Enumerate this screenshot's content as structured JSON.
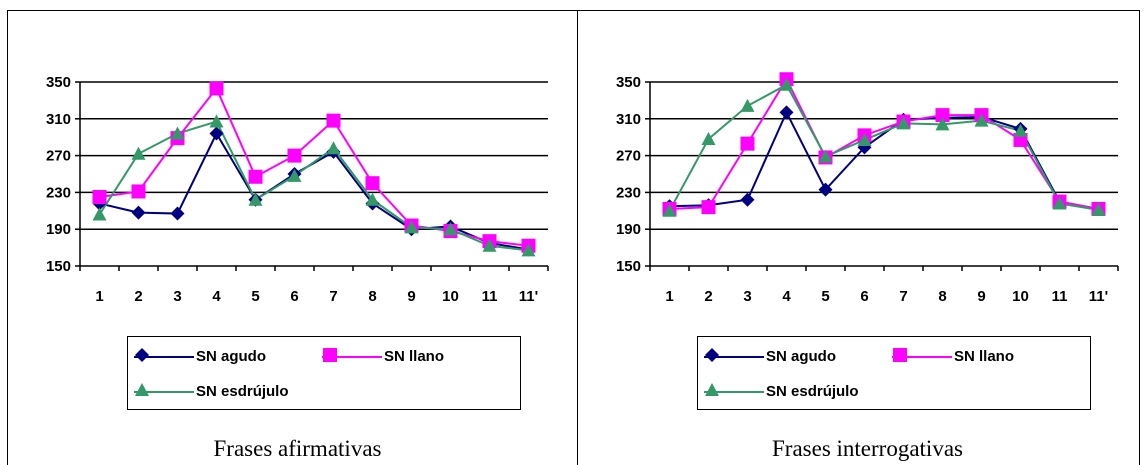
{
  "chart_data": [
    {
      "type": "line",
      "title": "Frases afirmativas",
      "categories": [
        "1",
        "2",
        "3",
        "4",
        "5",
        "6",
        "7",
        "8",
        "9",
        "10",
        "11",
        "11'"
      ],
      "ylim": [
        150,
        350
      ],
      "yticks": [
        150,
        190,
        230,
        270,
        310,
        350
      ],
      "grid": true,
      "legend_position": "bottom",
      "series": [
        {
          "name": "SN agudo",
          "values": [
            218,
            208,
            207,
            294,
            222,
            250,
            274,
            218,
            190,
            193,
            175,
            168
          ],
          "color": "#000080",
          "marker": "diamond"
        },
        {
          "name": "SN llano",
          "values": [
            225,
            231,
            289,
            343,
            247,
            270,
            308,
            240,
            194,
            188,
            177,
            172
          ],
          "color": "#FF00FF",
          "marker": "square"
        },
        {
          "name": "SN esdrújulo",
          "values": [
            206,
            272,
            294,
            307,
            222,
            248,
            278,
            222,
            192,
            190,
            172,
            167
          ],
          "color": "#339966",
          "marker": "triangle"
        }
      ]
    },
    {
      "type": "line",
      "title": "Frases interrogativas",
      "categories": [
        "1",
        "2",
        "3",
        "4",
        "5",
        "6",
        "7",
        "8",
        "9",
        "10",
        "11",
        "11'"
      ],
      "ylim": [
        150,
        350
      ],
      "yticks": [
        150,
        190,
        230,
        270,
        310,
        350
      ],
      "grid": true,
      "legend_position": "bottom",
      "series": [
        {
          "name": "SN agudo",
          "values": [
            215,
            216,
            222,
            317,
            233,
            279,
            309,
            311,
            312,
            299,
            220,
            212
          ],
          "color": "#000080",
          "marker": "diamond"
        },
        {
          "name": "SN llano",
          "values": [
            212,
            214,
            283,
            353,
            268,
            292,
            307,
            314,
            314,
            287,
            220,
            212
          ],
          "color": "#FF00FF",
          "marker": "square"
        },
        {
          "name": "SN esdrújulo",
          "values": [
            210,
            288,
            324,
            347,
            269,
            287,
            305,
            304,
            308,
            297,
            218,
            211
          ],
          "color": "#339966",
          "marker": "triangle"
        }
      ]
    }
  ]
}
